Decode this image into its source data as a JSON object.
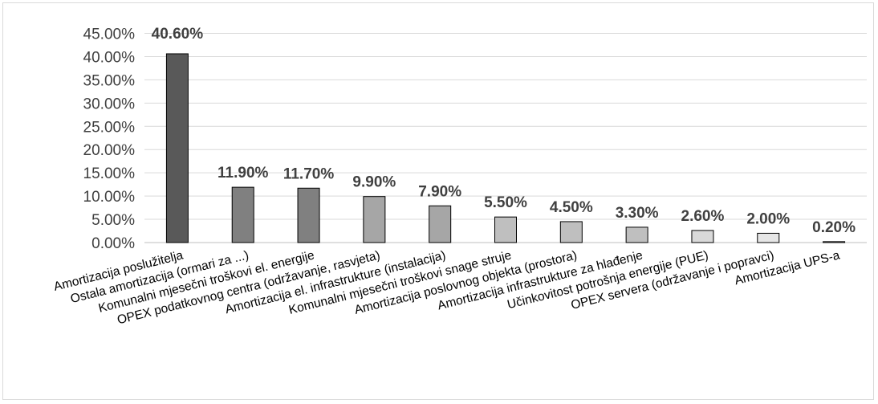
{
  "chart_data": {
    "type": "bar",
    "categories": [
      "Amortizacija poslužitelja",
      "Ostala amortizacija (ormari za ...)",
      "Komunalni mjesečni troškovi el. energije",
      "OPEX podatkovnog centra (održavanje, rasvjeta)",
      "Amortizacija el. infrastrukture (instalacija)",
      "Komunalni mjesečni troškovi snage struje",
      "Amortizacija poslovnog objekta (prostora)",
      "Amortizacija infrastrukture za hlađenje",
      "Učinkovitost potrošnja energije (PUE)",
      "OPEX servera (održavanje i popravci)",
      "Amortizacija UPS-a"
    ],
    "values": [
      40.6,
      11.9,
      11.7,
      9.9,
      7.9,
      5.5,
      4.5,
      3.3,
      2.6,
      2.0,
      0.2
    ],
    "data_labels": [
      "40.60%",
      "11.90%",
      "11.70%",
      "9.90%",
      "7.90%",
      "5.50%",
      "4.50%",
      "3.30%",
      "2.60%",
      "2.00%",
      "0.20%"
    ],
    "bar_colors": [
      "#595959",
      "#808080",
      "#808080",
      "#a6a6a6",
      "#a6a6a6",
      "#bfbfbf",
      "#bfbfbf",
      "#bfbfbf",
      "#d9d9d9",
      "#e6e6e6",
      "#f2f2f2"
    ],
    "y_ticks": [
      "0.00%",
      "5.00%",
      "10.00%",
      "15.00%",
      "20.00%",
      "25.00%",
      "30.00%",
      "35.00%",
      "40.00%",
      "45.00%"
    ],
    "ylim": [
      0,
      45
    ],
    "grid": true,
    "title": "",
    "xlabel": "",
    "ylabel": ""
  }
}
